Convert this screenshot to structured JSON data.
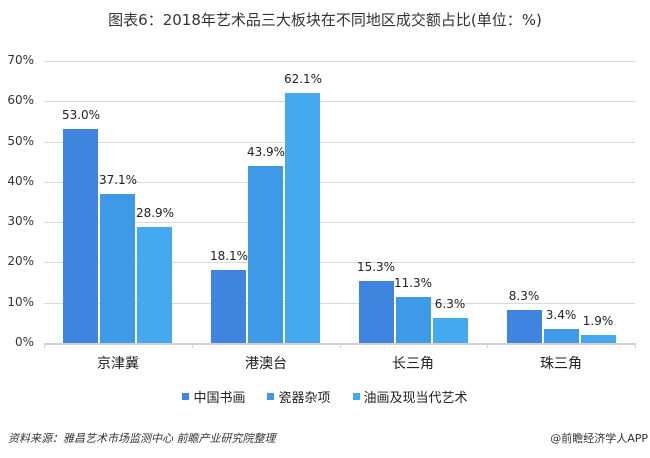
{
  "title": "图表6：2018年艺术品三大板块在不同地区成交额占比(单位：%)",
  "chart_data": {
    "type": "bar",
    "title": "图表6：2018年艺术品三大板块在不同地区成交额占比(单位：%)",
    "xlabel": "",
    "ylabel": "",
    "ylim": [
      0,
      70
    ],
    "yticks": [
      "0%",
      "10%",
      "20%",
      "30%",
      "40%",
      "50%",
      "60%",
      "70%"
    ],
    "grid": true,
    "legend_position": "bottom",
    "categories": [
      "京津冀",
      "港澳台",
      "长三角",
      "珠三角"
    ],
    "series": [
      {
        "name": "中国书画",
        "color": "#3f85e0",
        "values": [
          53.0,
          18.1,
          15.3,
          8.3
        ],
        "labels": [
          "53.0%",
          "18.1%",
          "15.3%",
          "8.3%"
        ]
      },
      {
        "name": "瓷器杂项",
        "color": "#3e9ae6",
        "values": [
          37.1,
          43.9,
          11.3,
          3.4
        ],
        "labels": [
          "37.1%",
          "43.9%",
          "11.3%",
          "3.4%"
        ]
      },
      {
        "name": "油画及现当代艺术",
        "color": "#45a9ef",
        "values": [
          28.9,
          62.1,
          6.3,
          1.9
        ],
        "labels": [
          "28.9%",
          "62.1%",
          "6.3%",
          "1.9%"
        ]
      }
    ]
  },
  "footer": {
    "source": "资料来源：雅昌艺术市场监测中心 前瞻产业研究院整理",
    "credit": "@前瞻经济学人APP"
  }
}
